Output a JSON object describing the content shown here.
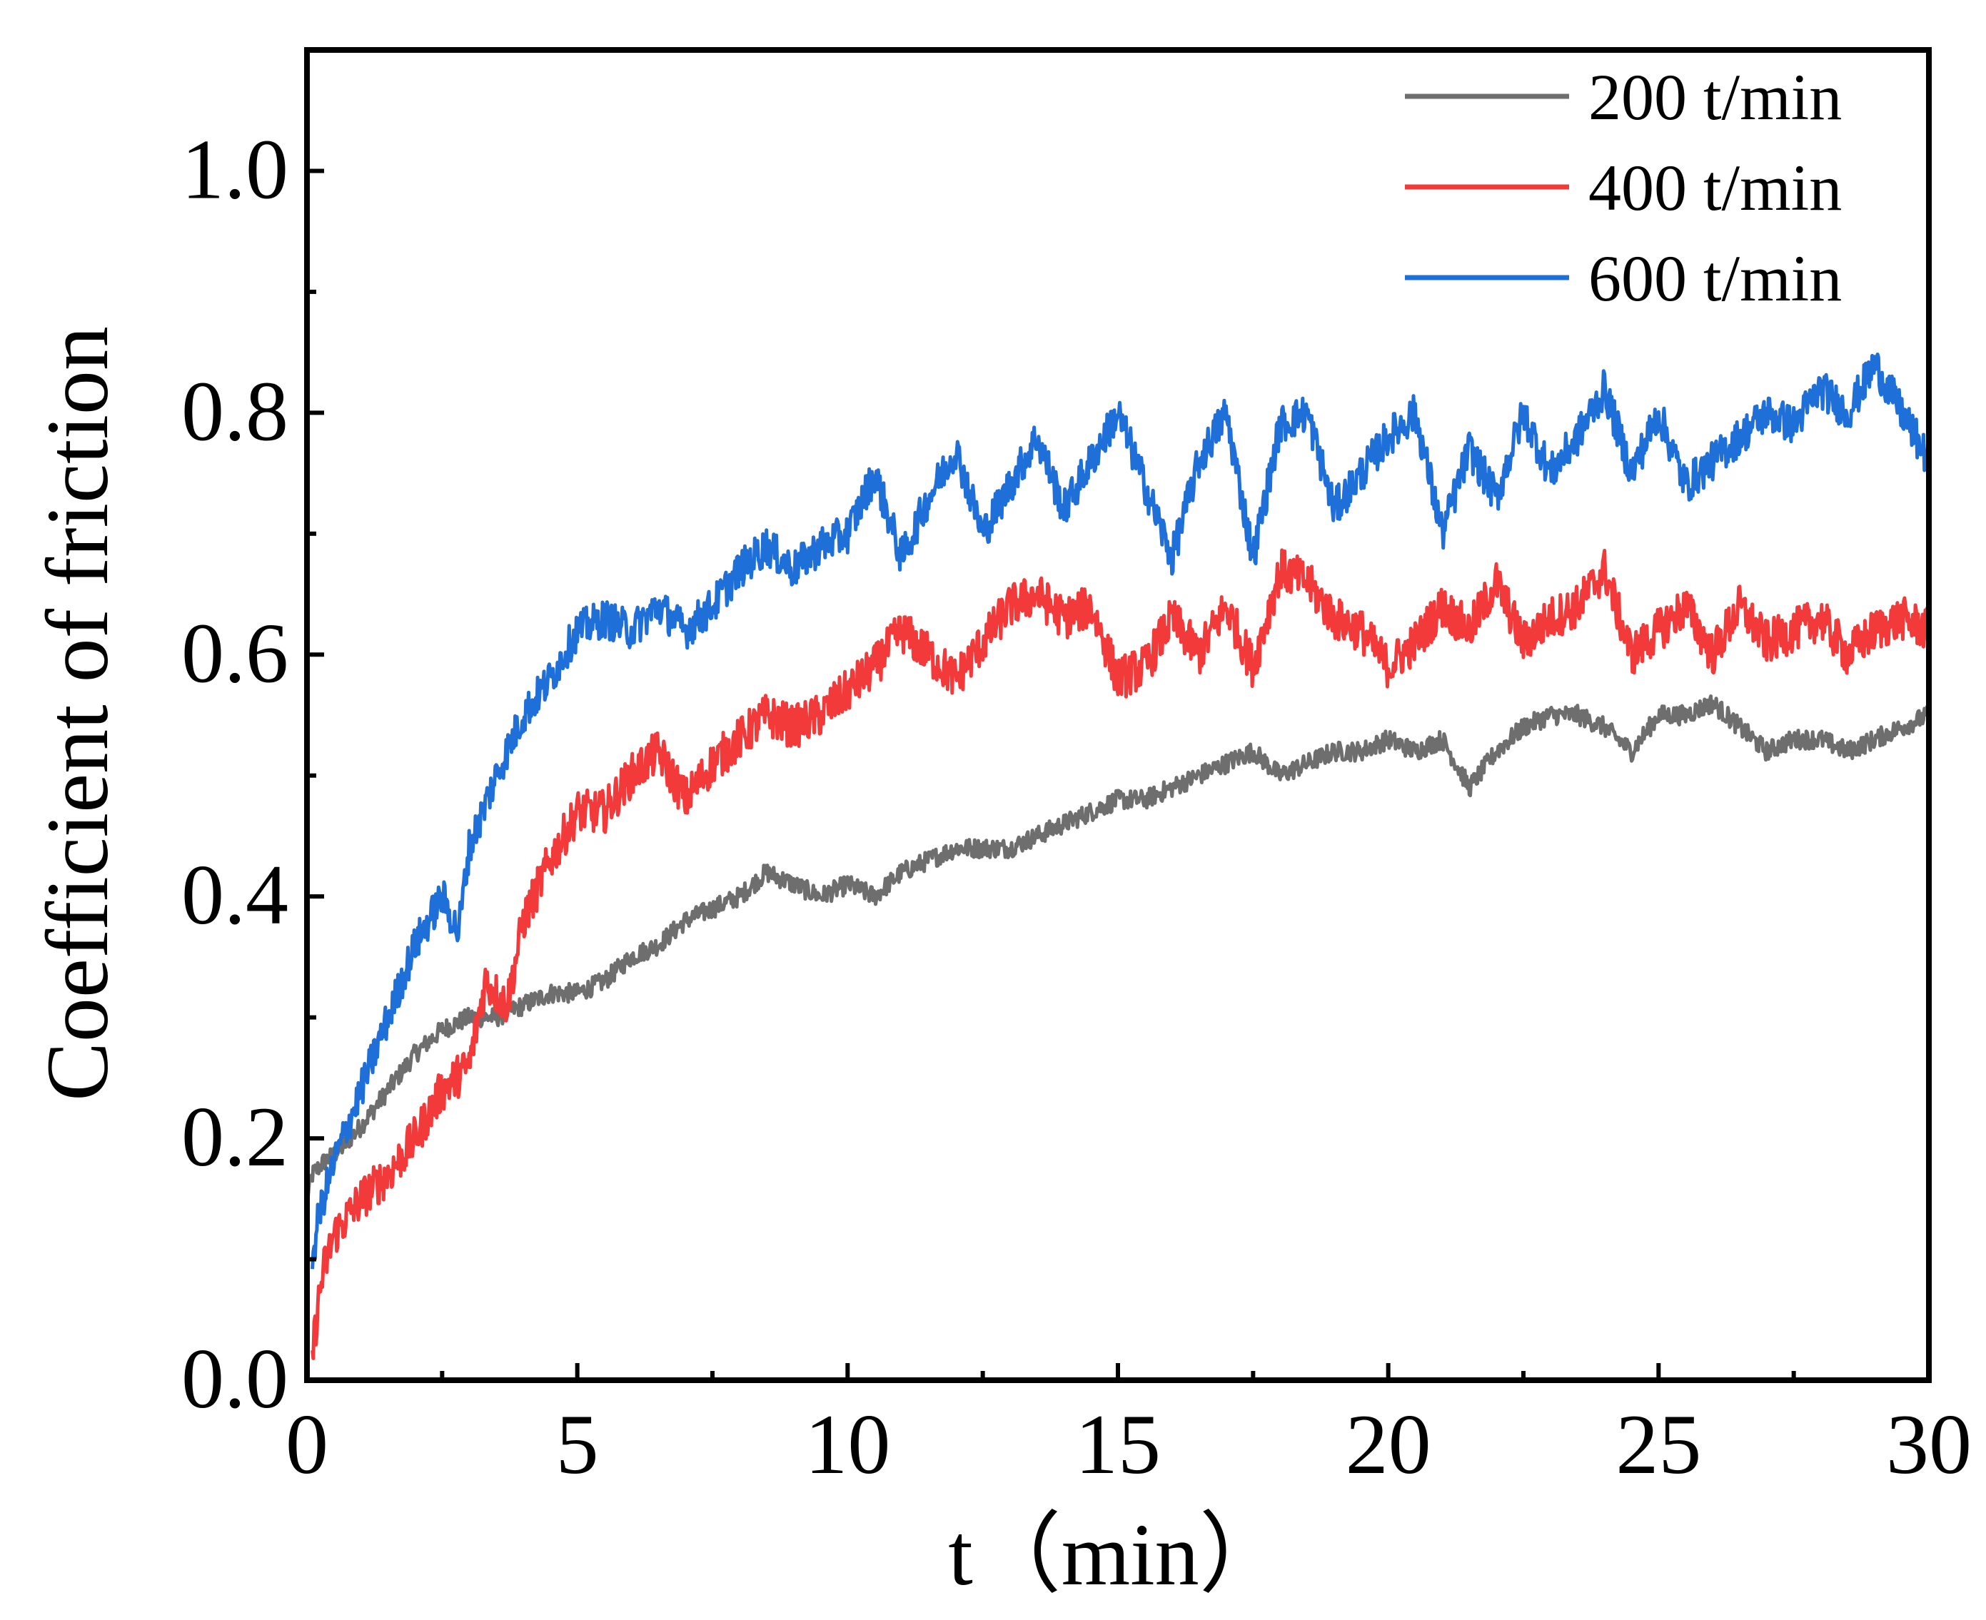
{
  "chart_data": {
    "type": "line",
    "title": "",
    "xlabel": "t（min）",
    "ylabel": "Coefficient of friction",
    "xlim": [
      0,
      30
    ],
    "ylim": [
      0,
      1.1
    ],
    "xticks": [
      0,
      5,
      10,
      15,
      20,
      25,
      30
    ],
    "xtick_labels": [
      "0",
      "5",
      "10",
      "15",
      "20",
      "25",
      "30"
    ],
    "xminor": [
      2.5,
      7.5,
      12.5,
      17.5,
      22.5,
      27.5
    ],
    "yticks": [
      0.0,
      0.2,
      0.4,
      0.6,
      0.8,
      1.0
    ],
    "ytick_labels": [
      "0.0",
      "0.2",
      "0.4",
      "0.6",
      "0.8",
      "1.0"
    ],
    "yminor": [
      0.1,
      0.3,
      0.5,
      0.7,
      0.9
    ],
    "grid": false,
    "legend_position": "top-right",
    "series": [
      {
        "name": "200 t/min",
        "color": "#6e6e6e",
        "x": [
          0,
          0.1,
          0.3,
          0.6,
          1,
          1.5,
          2,
          2.5,
          3,
          3.5,
          4,
          4.5,
          5,
          5.5,
          6,
          6.5,
          7,
          7.5,
          8,
          8.5,
          9,
          9.5,
          10,
          10.5,
          11,
          11.5,
          12,
          12.5,
          13,
          13.5,
          14,
          14.5,
          15,
          15.5,
          16,
          16.5,
          17,
          17.5,
          18,
          18.5,
          19,
          19.5,
          20,
          20.5,
          21,
          21.5,
          22,
          22.5,
          23,
          23.5,
          24,
          24.5,
          25,
          25.5,
          26,
          26.5,
          27,
          27.5,
          28,
          28.5,
          29,
          29.5,
          30
        ],
        "y": [
          0.15,
          0.17,
          0.18,
          0.19,
          0.21,
          0.24,
          0.27,
          0.29,
          0.3,
          0.3,
          0.31,
          0.32,
          0.32,
          0.33,
          0.35,
          0.36,
          0.38,
          0.39,
          0.4,
          0.42,
          0.41,
          0.4,
          0.41,
          0.4,
          0.42,
          0.43,
          0.44,
          0.44,
          0.44,
          0.45,
          0.46,
          0.47,
          0.48,
          0.48,
          0.49,
          0.5,
          0.51,
          0.52,
          0.5,
          0.51,
          0.52,
          0.52,
          0.53,
          0.52,
          0.53,
          0.49,
          0.52,
          0.54,
          0.55,
          0.55,
          0.54,
          0.52,
          0.55,
          0.55,
          0.56,
          0.54,
          0.52,
          0.53,
          0.53,
          0.52,
          0.53,
          0.54,
          0.55
        ]
      },
      {
        "name": "400 t/min",
        "color": "#f23a3a",
        "x": [
          0.1,
          0.2,
          0.3,
          0.5,
          1,
          1.5,
          2,
          2.5,
          3,
          3.3,
          3.7,
          4,
          4.5,
          5,
          5.5,
          6,
          6.5,
          7,
          7.5,
          8,
          8.5,
          9,
          9.5,
          10,
          10.5,
          11,
          11.5,
          12,
          12.5,
          13,
          13.5,
          14,
          14.5,
          15,
          15.5,
          16,
          16.5,
          17,
          17.5,
          18,
          18.5,
          19,
          19.5,
          20,
          20.5,
          21,
          21.5,
          22,
          22.5,
          23,
          23.5,
          24,
          24.5,
          25,
          25.5,
          26,
          26.5,
          27,
          27.5,
          28,
          28.5,
          29,
          29.5,
          30
        ],
        "y": [
          0.02,
          0.06,
          0.09,
          0.12,
          0.15,
          0.17,
          0.2,
          0.24,
          0.26,
          0.33,
          0.31,
          0.38,
          0.43,
          0.47,
          0.47,
          0.5,
          0.52,
          0.48,
          0.51,
          0.53,
          0.55,
          0.54,
          0.55,
          0.57,
          0.59,
          0.62,
          0.6,
          0.58,
          0.61,
          0.64,
          0.65,
          0.63,
          0.64,
          0.58,
          0.59,
          0.63,
          0.6,
          0.64,
          0.59,
          0.67,
          0.66,
          0.63,
          0.62,
          0.59,
          0.61,
          0.64,
          0.62,
          0.66,
          0.61,
          0.63,
          0.64,
          0.67,
          0.6,
          0.62,
          0.64,
          0.6,
          0.64,
          0.61,
          0.62,
          0.63,
          0.6,
          0.62,
          0.63,
          0.62
        ]
      },
      {
        "name": "600 t/min",
        "color": "#1f6fd8",
        "x": [
          0.1,
          0.2,
          0.3,
          0.5,
          1,
          1.5,
          2,
          2.5,
          2.8,
          3,
          3.5,
          4,
          4.5,
          5,
          5.5,
          6,
          6.5,
          7,
          7.5,
          8,
          8.5,
          9,
          9.5,
          10,
          10.5,
          11,
          11.5,
          12,
          12.5,
          13,
          13.5,
          14,
          14.5,
          15,
          15.5,
          16,
          16.5,
          17,
          17.5,
          18,
          18.5,
          19,
          19.5,
          20,
          20.5,
          21,
          21.5,
          22,
          22.5,
          23,
          23.5,
          24,
          24.5,
          25,
          25.5,
          26,
          26.5,
          27,
          27.5,
          28,
          28.5,
          29,
          29.5,
          30
        ],
        "y": [
          0.1,
          0.13,
          0.15,
          0.18,
          0.24,
          0.3,
          0.36,
          0.4,
          0.37,
          0.44,
          0.5,
          0.55,
          0.58,
          0.62,
          0.63,
          0.62,
          0.64,
          0.62,
          0.64,
          0.67,
          0.69,
          0.67,
          0.69,
          0.7,
          0.75,
          0.68,
          0.73,
          0.77,
          0.7,
          0.74,
          0.78,
          0.72,
          0.76,
          0.8,
          0.74,
          0.68,
          0.76,
          0.8,
          0.68,
          0.79,
          0.8,
          0.72,
          0.75,
          0.78,
          0.8,
          0.7,
          0.77,
          0.73,
          0.8,
          0.75,
          0.78,
          0.82,
          0.75,
          0.8,
          0.74,
          0.76,
          0.78,
          0.8,
          0.79,
          0.82,
          0.8,
          0.84,
          0.8,
          0.76
        ]
      }
    ]
  }
}
